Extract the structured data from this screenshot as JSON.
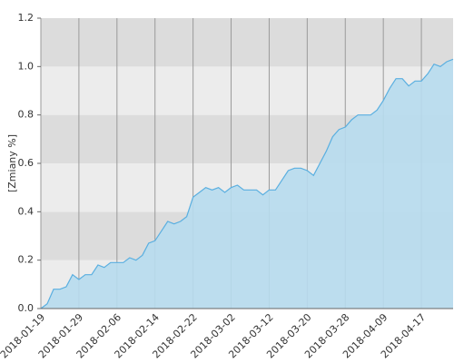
{
  "chart_data": {
    "type": "area",
    "ylabel": "[Zmiany %]",
    "categories": [
      "2018-01-19",
      null,
      null,
      null,
      null,
      null,
      "2018-01-29",
      null,
      null,
      null,
      null,
      null,
      "2018-02-06",
      null,
      null,
      null,
      null,
      null,
      "2018-02-14",
      null,
      null,
      null,
      null,
      null,
      "2018-02-22",
      null,
      null,
      null,
      null,
      null,
      "2018-03-02",
      null,
      null,
      null,
      null,
      null,
      "2018-03-12",
      null,
      null,
      null,
      null,
      null,
      "2018-03-20",
      null,
      null,
      null,
      null,
      null,
      "2018-03-28",
      null,
      null,
      null,
      null,
      null,
      "2018-04-09",
      null,
      null,
      null,
      null,
      null,
      "2018-04-17",
      null,
      null,
      null,
      null,
      null
    ],
    "values": [
      0.0,
      0.02,
      0.08,
      0.08,
      0.09,
      0.14,
      0.12,
      0.14,
      0.14,
      0.18,
      0.17,
      0.19,
      0.19,
      0.19,
      0.21,
      0.2,
      0.22,
      0.27,
      0.28,
      0.32,
      0.36,
      0.35,
      0.36,
      0.38,
      0.46,
      0.48,
      0.5,
      0.49,
      0.5,
      0.48,
      0.5,
      0.51,
      0.49,
      0.49,
      0.49,
      0.47,
      0.49,
      0.49,
      0.53,
      0.57,
      0.58,
      0.58,
      0.57,
      0.55,
      0.6,
      0.65,
      0.71,
      0.74,
      0.75,
      0.78,
      0.8,
      0.8,
      0.8,
      0.82,
      0.86,
      0.91,
      0.95,
      0.95,
      0.92,
      0.94,
      0.94,
      0.97,
      1.01,
      1.0,
      1.02,
      1.03
    ],
    "color": "#b7dcee",
    "line_color": "#5aafe0",
    "ylim": [
      0,
      1.2
    ],
    "yticks": [
      {
        "value": 0,
        "label": "0.0"
      },
      0.2,
      0.4,
      0.6,
      0.8,
      {
        "value": 1,
        "label": "1.0"
      },
      1.2
    ],
    "background_bands": [
      "#ececec",
      "#dcdcdc"
    ],
    "grid": true
  }
}
